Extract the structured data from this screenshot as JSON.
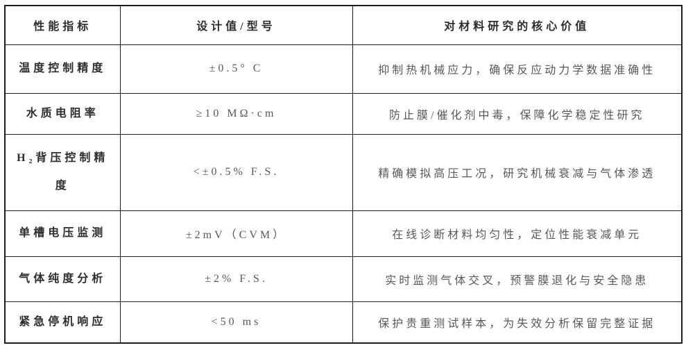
{
  "table": {
    "columns": [
      {
        "label": "性能指标"
      },
      {
        "label": "设计值/型号"
      },
      {
        "label": "对材料研究的核心价值"
      }
    ],
    "rows": [
      {
        "indicator": "温度控制精度",
        "value": "±0.5° C",
        "benefit": "抑制热机械应力，确保反应动力学数据准确性"
      },
      {
        "indicator": "水质电阻率",
        "value": "≥10 MΩ·cm",
        "benefit": "防止膜/催化剂中毒，保障化学稳定性研究"
      },
      {
        "indicator": "H₂背压控制精度",
        "value": "<±0.5% F.S.",
        "benefit": "精确模拟高压工况，研究机械衰减与气体渗透"
      },
      {
        "indicator": "单槽电压监测",
        "value": "±2mV（CVM）",
        "benefit": "在线诊断材料均匀性，定位性能衰减单元"
      },
      {
        "indicator": "气体纯度分析",
        "value": "±2% F.S.",
        "benefit": "实时监测气体交叉，预警膜退化与安全隐患"
      },
      {
        "indicator": "紧急停机响应",
        "value": "<50 ms",
        "benefit": "保护贵重测试样本，为失效分析保留完整证据"
      }
    ],
    "colors": {
      "border": "#1c1c1c",
      "header_text": "#2d2d2d",
      "body_text": "#585858",
      "background": "#ffffff"
    }
  }
}
